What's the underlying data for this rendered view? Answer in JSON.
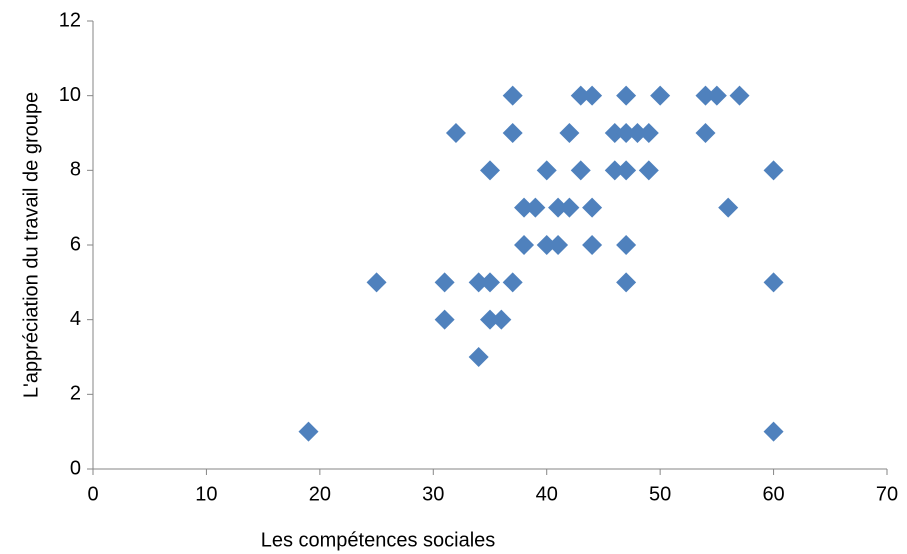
{
  "chart_data": {
    "type": "scatter",
    "x_label": "Les compétences sociales",
    "y_label": "L'appréciation du travail  de groupe",
    "color": "#4f81bd",
    "grid": false,
    "xlim": [
      0,
      70
    ],
    "xticks": [
      0,
      10,
      20,
      30,
      40,
      50,
      60,
      70
    ],
    "ylim": [
      0,
      12
    ],
    "yticks": [
      0,
      2,
      4,
      6,
      8,
      10,
      12
    ],
    "x": [
      19,
      25,
      32,
      31,
      31,
      34,
      34,
      35,
      35,
      36,
      35,
      37,
      37,
      37,
      38,
      38,
      39,
      40,
      40,
      41,
      41,
      42,
      42,
      43,
      43,
      44,
      44,
      44,
      46,
      46,
      47,
      47,
      47,
      47,
      47,
      48,
      49,
      49,
      50,
      54,
      54,
      55,
      57,
      56,
      60,
      60,
      60
    ],
    "values": [
      1,
      5,
      9,
      5,
      4,
      3,
      5,
      5,
      4,
      4,
      8,
      10,
      9,
      5,
      7,
      6,
      7,
      8,
      6,
      6,
      7,
      7,
      9,
      10,
      8,
      10,
      7,
      6,
      9,
      8,
      10,
      9,
      8,
      6,
      5,
      9,
      9,
      8,
      10,
      10,
      9,
      10,
      10,
      7,
      8,
      5,
      1
    ]
  }
}
